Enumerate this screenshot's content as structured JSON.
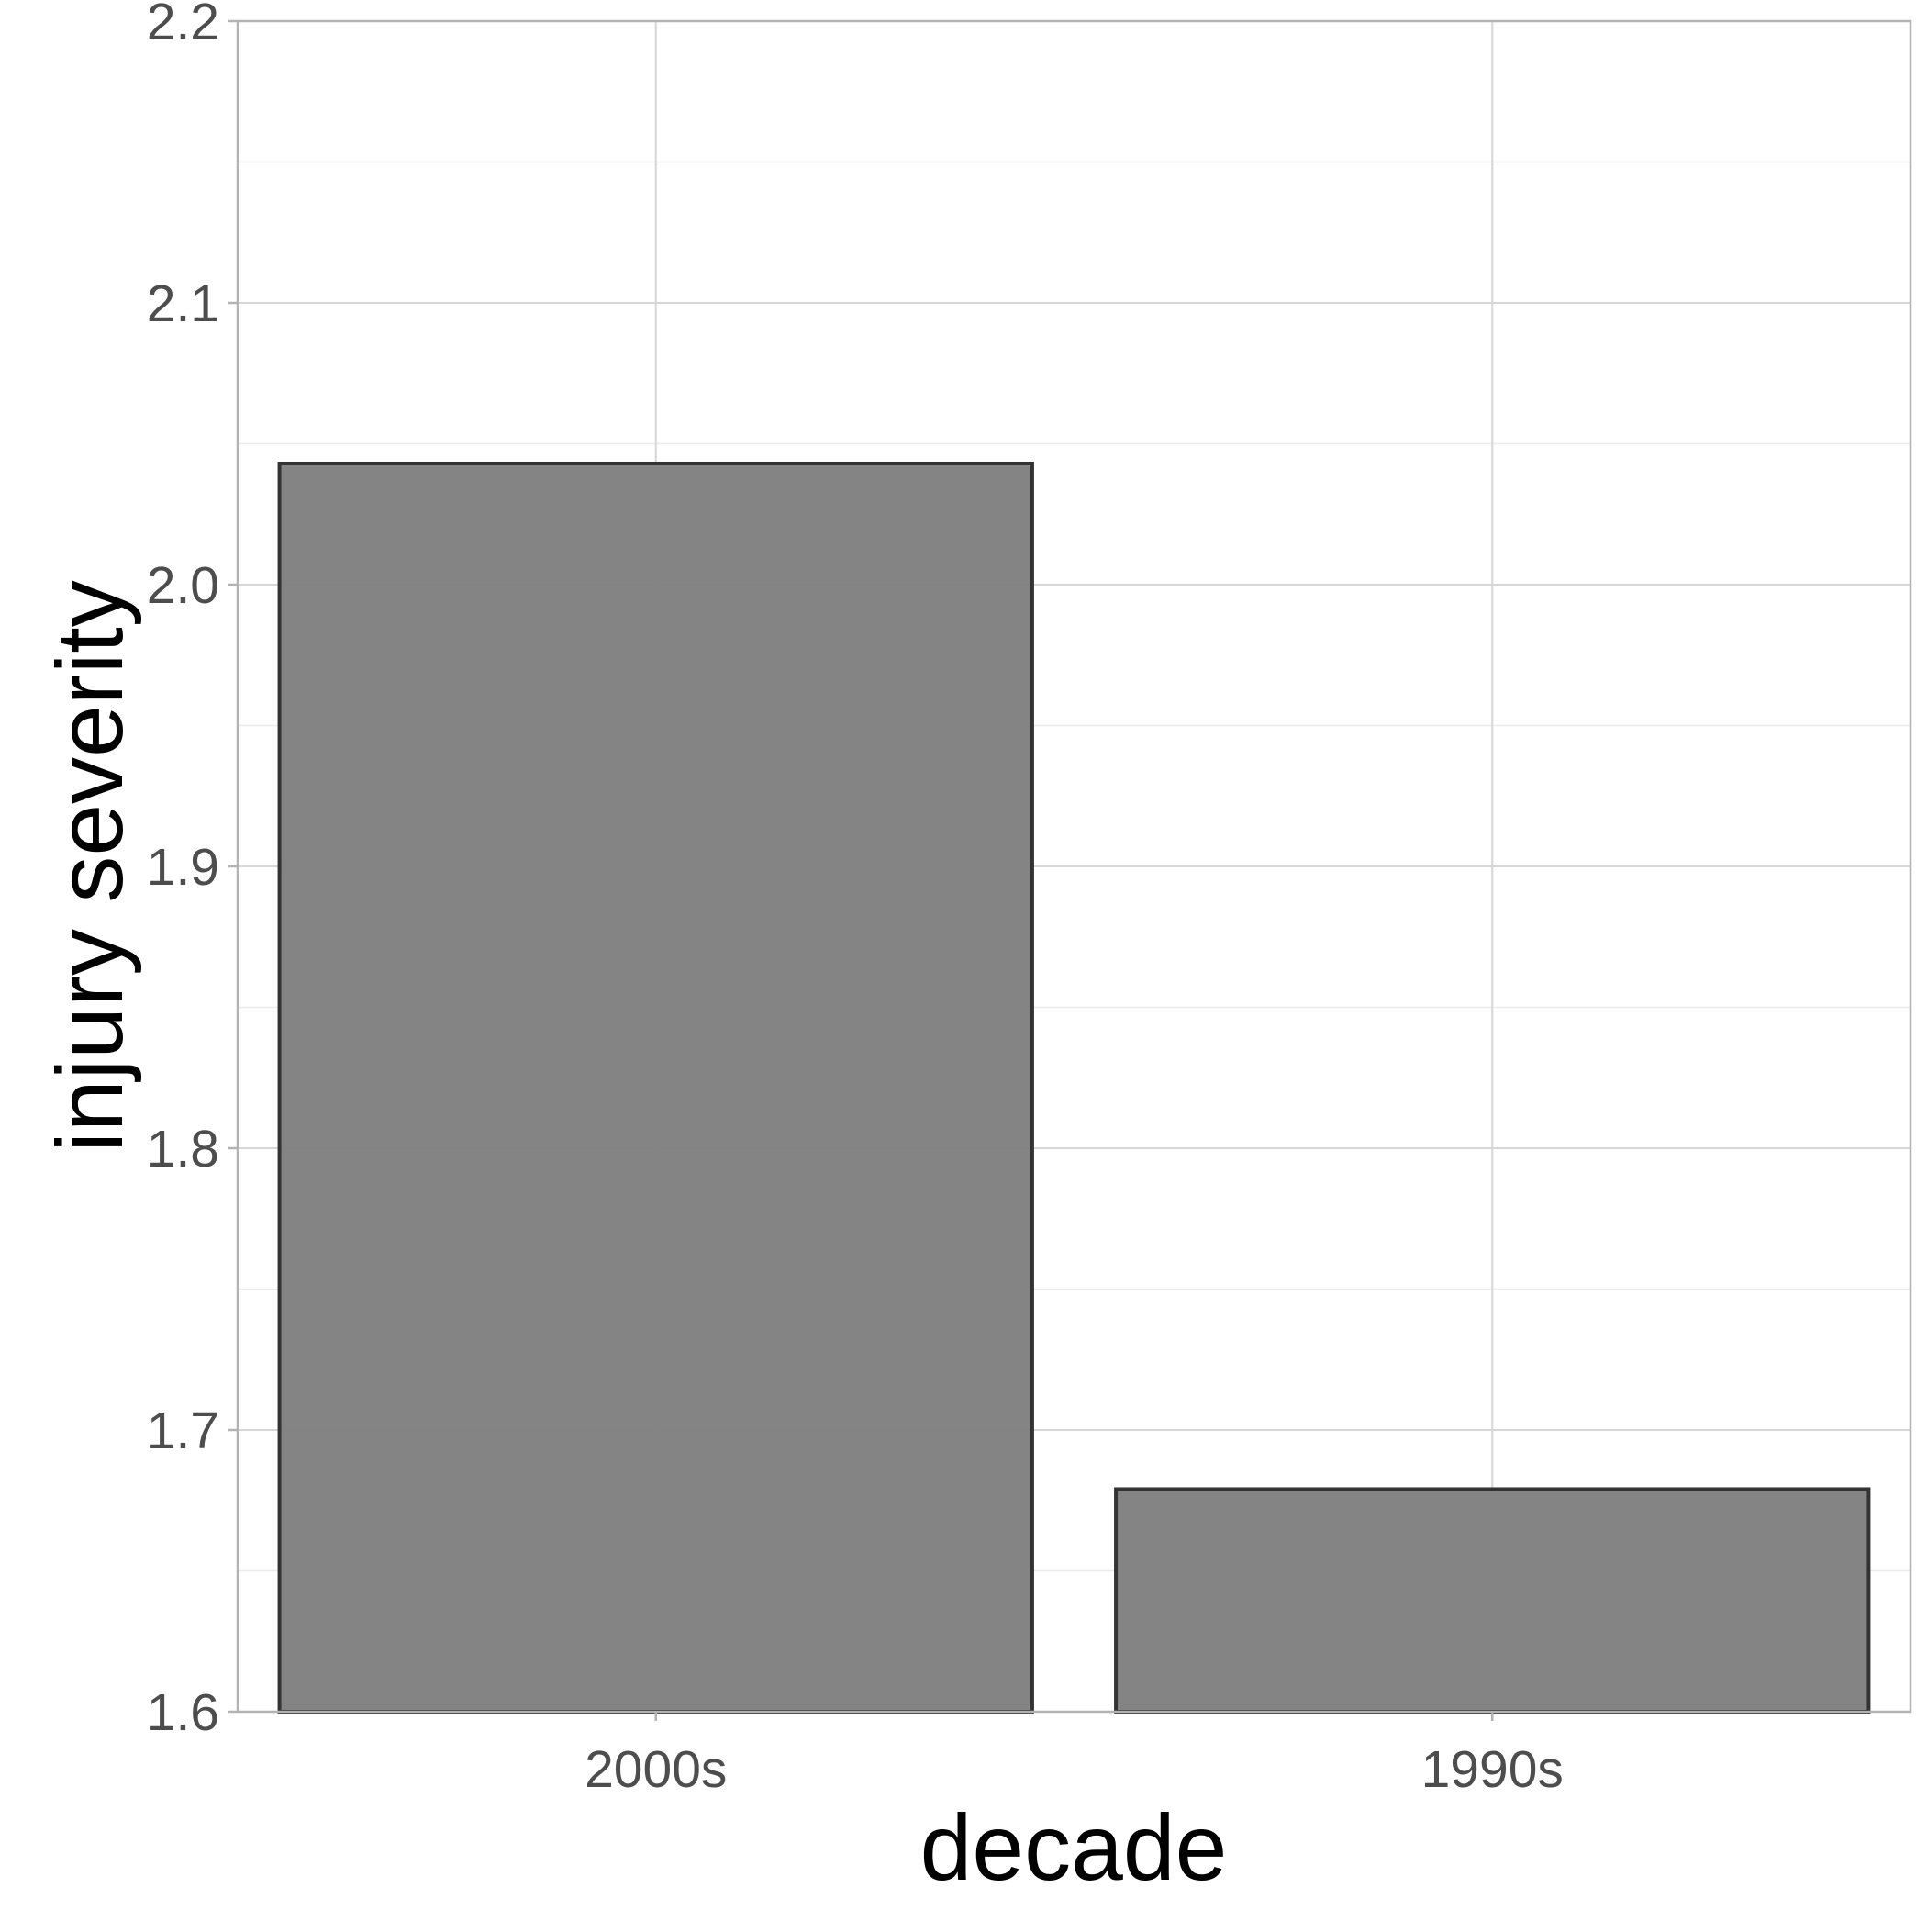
{
  "chart_data": {
    "type": "bar",
    "categories": [
      "2000s",
      "1990s"
    ],
    "values": [
      2.043,
      1.679
    ],
    "xlabel": "decade",
    "ylabel": "injury severity",
    "ylim": [
      1.6,
      2.2
    ],
    "yticks": [
      "1.6",
      "1.7",
      "1.8",
      "1.9",
      "2.0",
      "2.1",
      "2.2"
    ],
    "grid": true,
    "bar_color": "#808080",
    "bar_outline_color": "#333333"
  }
}
